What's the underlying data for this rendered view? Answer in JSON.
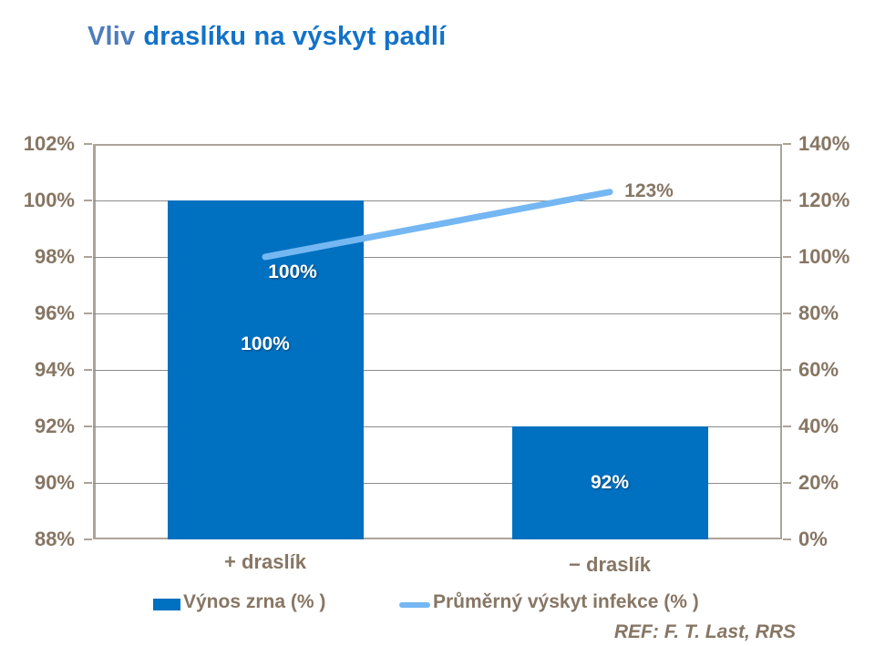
{
  "title": {
    "part1": "Vliv",
    "part2": "draslíku na výskyt padlí"
  },
  "colors": {
    "bar": "#0070C0",
    "line": "#74B7F2",
    "text": "#877664",
    "title1": "#4E7CBC",
    "title2": "#1272C8",
    "border": "#ACA399",
    "grid": "#8C8C8C"
  },
  "chart_data": {
    "type": "bar",
    "subtype": "combo-bar-line-dual-axis",
    "title": "Vliv draslíku na výskyt padlí",
    "categories": [
      "+ draslík",
      "− draslík"
    ],
    "series": [
      {
        "name": "Výnos zrna (% )",
        "type": "bar",
        "axis": "left",
        "values": [
          100,
          92
        ],
        "point_labels": [
          "100%",
          "92%"
        ],
        "color": "#0070C0"
      },
      {
        "name": "Průměrný výskyt infekce (% )",
        "type": "line",
        "axis": "right",
        "values": [
          100,
          123
        ],
        "point_labels": [
          "100%",
          "123%"
        ],
        "color": "#74B7F2"
      }
    ],
    "left_axis": {
      "min": 88,
      "max": 102,
      "step": 2,
      "ticks": [
        "102%",
        "100%",
        "98%",
        "96%",
        "94%",
        "92%",
        "90%",
        "88%"
      ]
    },
    "right_axis": {
      "min": 0,
      "max": 140,
      "step": 20,
      "ticks": [
        "140%",
        "120%",
        "100%",
        "80%",
        "60%",
        "40%",
        "20%",
        "0%"
      ]
    },
    "grid": true,
    "legend_position": "bottom"
  },
  "footer": {
    "reference": "REF: F. T. Last, RRS"
  }
}
